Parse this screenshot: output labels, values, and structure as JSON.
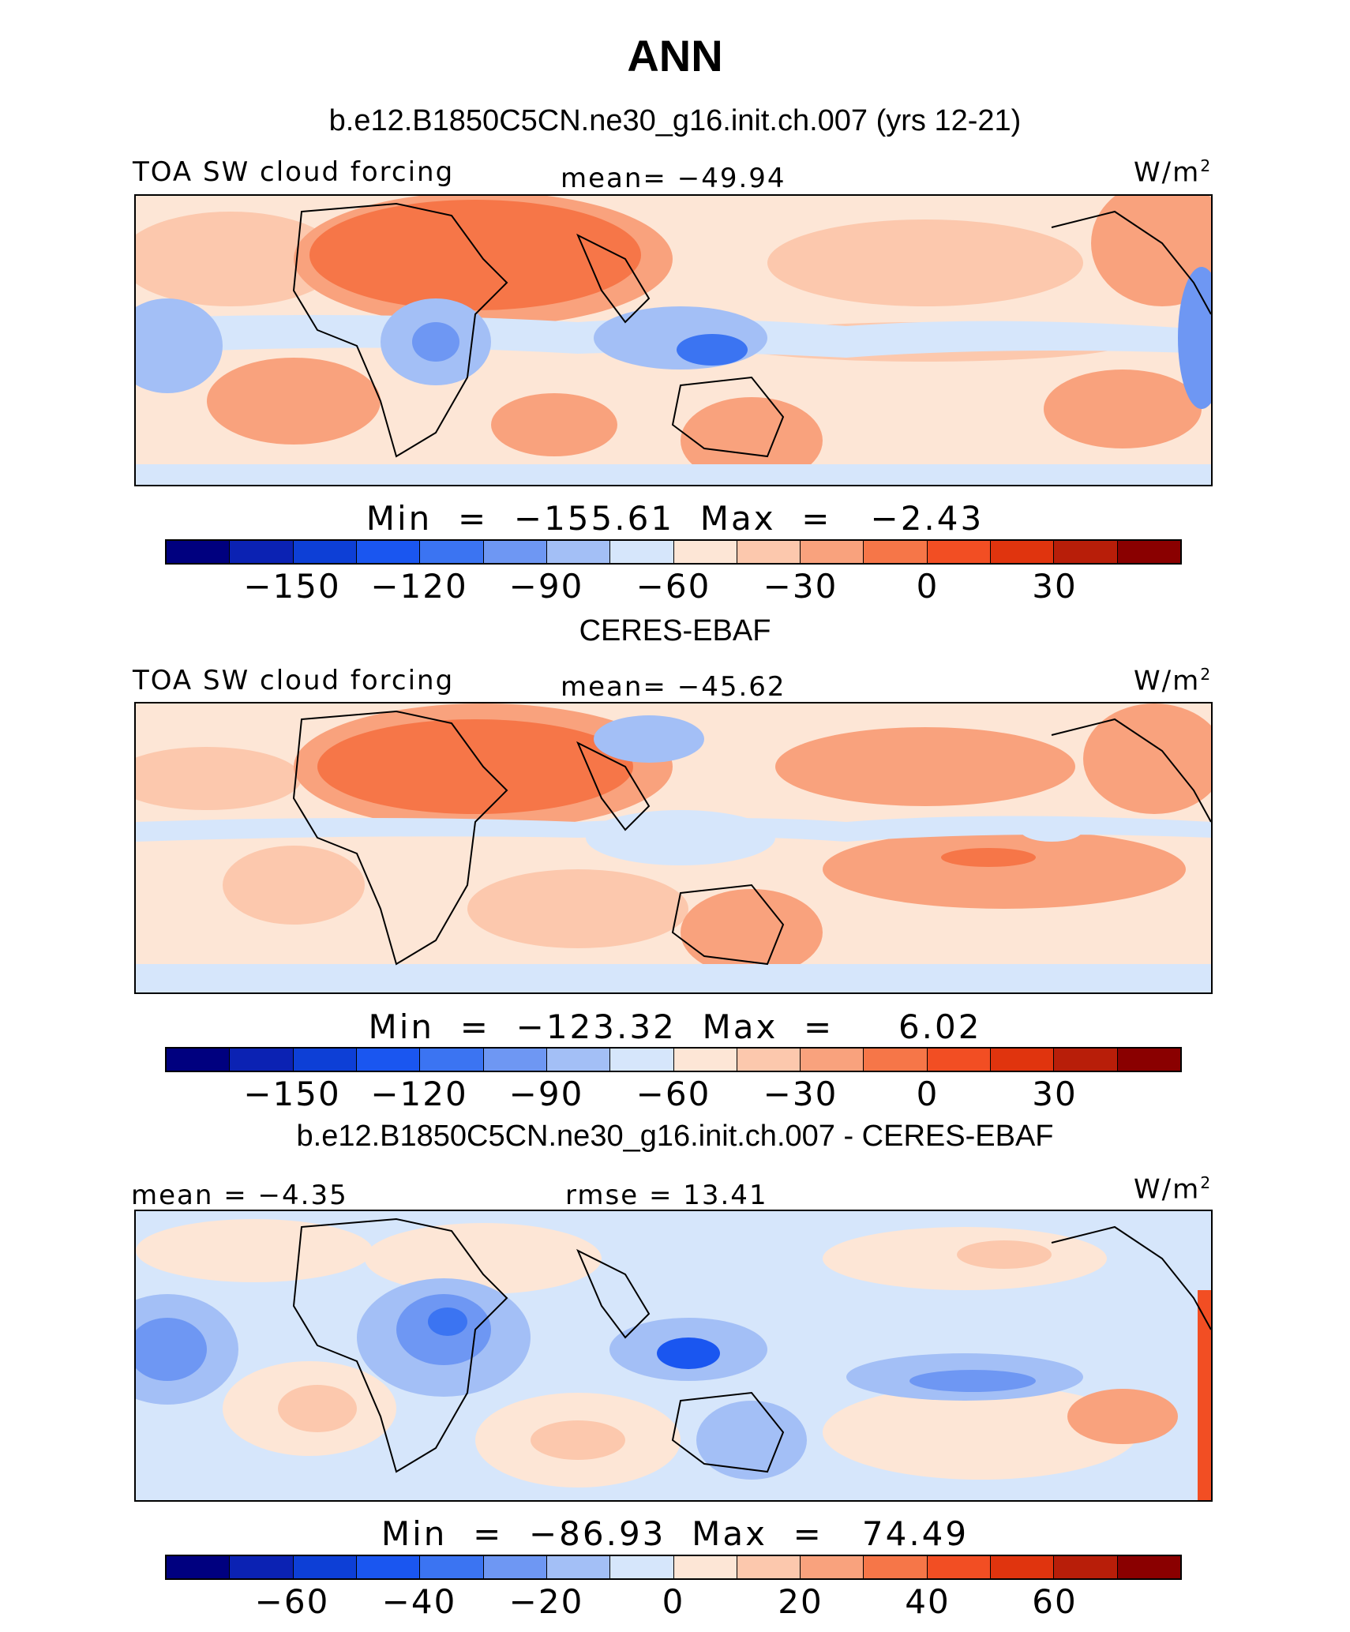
{
  "title": "ANN",
  "colors": [
    "#00007f",
    "#0b22b3",
    "#0d3fd6",
    "#1a56f0",
    "#3b74f2",
    "#6e97f3",
    "#a3bff6",
    "#d6e6fb",
    "#fde6d6",
    "#fcc8ad",
    "#f9a27d",
    "#f67648",
    "#f24e23",
    "#e0340e",
    "#b81e09",
    "#8a0000"
  ],
  "panels": [
    {
      "title": "b.e12.B1850C5CN.ne30_g16.init.ch.007 (yrs 12-21)",
      "left_label": "TOA SW cloud forcing",
      "center_label": "mean= −49.94",
      "units": "W/m",
      "units_sup": "2",
      "minmax": "Min  =  −155.61  Max  =   −2.43",
      "ticks": [
        "−150",
        "−120",
        "−90",
        "−60",
        "−30",
        "0",
        "30"
      ],
      "map": "model"
    },
    {
      "title": "CERES-EBAF",
      "left_label": "TOA SW cloud forcing",
      "center_label": "mean= −45.62",
      "units": "W/m",
      "units_sup": "2",
      "minmax": "Min  =  −123.32  Max  =     6.02",
      "ticks": [
        "−150",
        "−120",
        "−90",
        "−60",
        "−30",
        "0",
        "30"
      ],
      "map": "obs"
    },
    {
      "title": "b.e12.B1850C5CN.ne30_g16.init.ch.007 - CERES-EBAF",
      "left_label": "mean =   −4.35",
      "center_label": "rmse =   13.41",
      "units": "W/m",
      "units_sup": "2",
      "minmax": "Min  =  −86.93  Max  =   74.49",
      "ticks": [
        "−60",
        "−40",
        "−20",
        "0",
        "20",
        "40",
        "60"
      ],
      "map": "diff"
    }
  ]
}
